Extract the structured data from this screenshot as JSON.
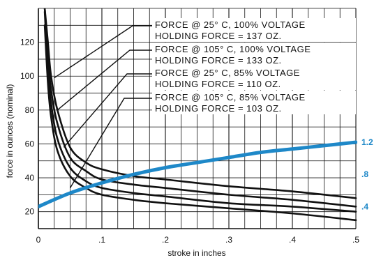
{
  "chart_data": {
    "type": "line",
    "title": "",
    "xlabel": "stroke in inches",
    "ylabel": "force in ounces (nominal)",
    "xlim": [
      0,
      0.5
    ],
    "ylim": [
      10,
      140
    ],
    "x_ticks": [
      "0",
      ".1",
      ".2",
      ".3",
      ".4",
      ".5"
    ],
    "y_ticks": [
      "20",
      "40",
      "60",
      "80",
      "100",
      "120"
    ],
    "right_axis": {
      "ticks": [
        ".4",
        ".8",
        "1.2"
      ],
      "color": "#1e88c8"
    },
    "grid": true,
    "series": [
      {
        "color": "#111111",
        "x": [
          0.01,
          0.015,
          0.02,
          0.03,
          0.05,
          0.075,
          0.1,
          0.15,
          0.2,
          0.3,
          0.4,
          0.5
        ],
        "y": [
          140,
          120,
          100,
          80,
          58,
          49,
          45,
          41,
          39,
          35,
          32,
          28
        ]
      },
      {
        "color": "#111111",
        "x": [
          0.01,
          0.015,
          0.02,
          0.03,
          0.05,
          0.075,
          0.1,
          0.15,
          0.2,
          0.3,
          0.4,
          0.5
        ],
        "y": [
          140,
          112,
          92,
          72,
          52,
          44,
          39,
          36,
          34,
          30,
          27,
          23
        ]
      },
      {
        "color": "#111111",
        "x": [
          0.01,
          0.015,
          0.02,
          0.03,
          0.05,
          0.075,
          0.1,
          0.15,
          0.2,
          0.3,
          0.4,
          0.5
        ],
        "y": [
          138,
          104,
          84,
          63,
          46,
          38,
          34,
          31,
          29,
          25,
          23,
          20
        ]
      },
      {
        "color": "#111111",
        "x": [
          0.01,
          0.015,
          0.02,
          0.03,
          0.05,
          0.075,
          0.1,
          0.15,
          0.2,
          0.3,
          0.4,
          0.5
        ],
        "y": [
          130,
          96,
          76,
          56,
          41,
          34,
          30,
          27,
          25,
          22,
          19,
          15
        ]
      },
      {
        "color": "#1e88c8",
        "x": [
          0,
          0.05,
          0.1,
          0.15,
          0.2,
          0.25,
          0.3,
          0.35,
          0.4,
          0.45,
          0.5
        ],
        "y": [
          23,
          31,
          37,
          42,
          46,
          49,
          52,
          55,
          57,
          59,
          61
        ]
      }
    ],
    "annotations": [
      {
        "line1": "FORCE @  25° C, 100% VOLTAGE",
        "line2": "HOLDING FORCE = 137 OZ.",
        "arrow_to": [
          0.025,
          99
        ]
      },
      {
        "line1": "FORCE @ 105° C, 100% VOLTAGE",
        "line2": "HOLDING FORCE = 133 OZ.",
        "arrow_to": [
          0.03,
          80
        ]
      },
      {
        "line1": "FORCE @  25° C,   85% VOLTAGE",
        "line2": "HOLDING FORCE = 110 OZ.",
        "arrow_to": [
          0.04,
          58
        ]
      },
      {
        "line1": "FORCE @ 105° C,   85% VOLTAGE",
        "line2": "HOLDING FORCE = 103 OZ.",
        "arrow_to": [
          0.05,
          34
        ]
      }
    ]
  }
}
